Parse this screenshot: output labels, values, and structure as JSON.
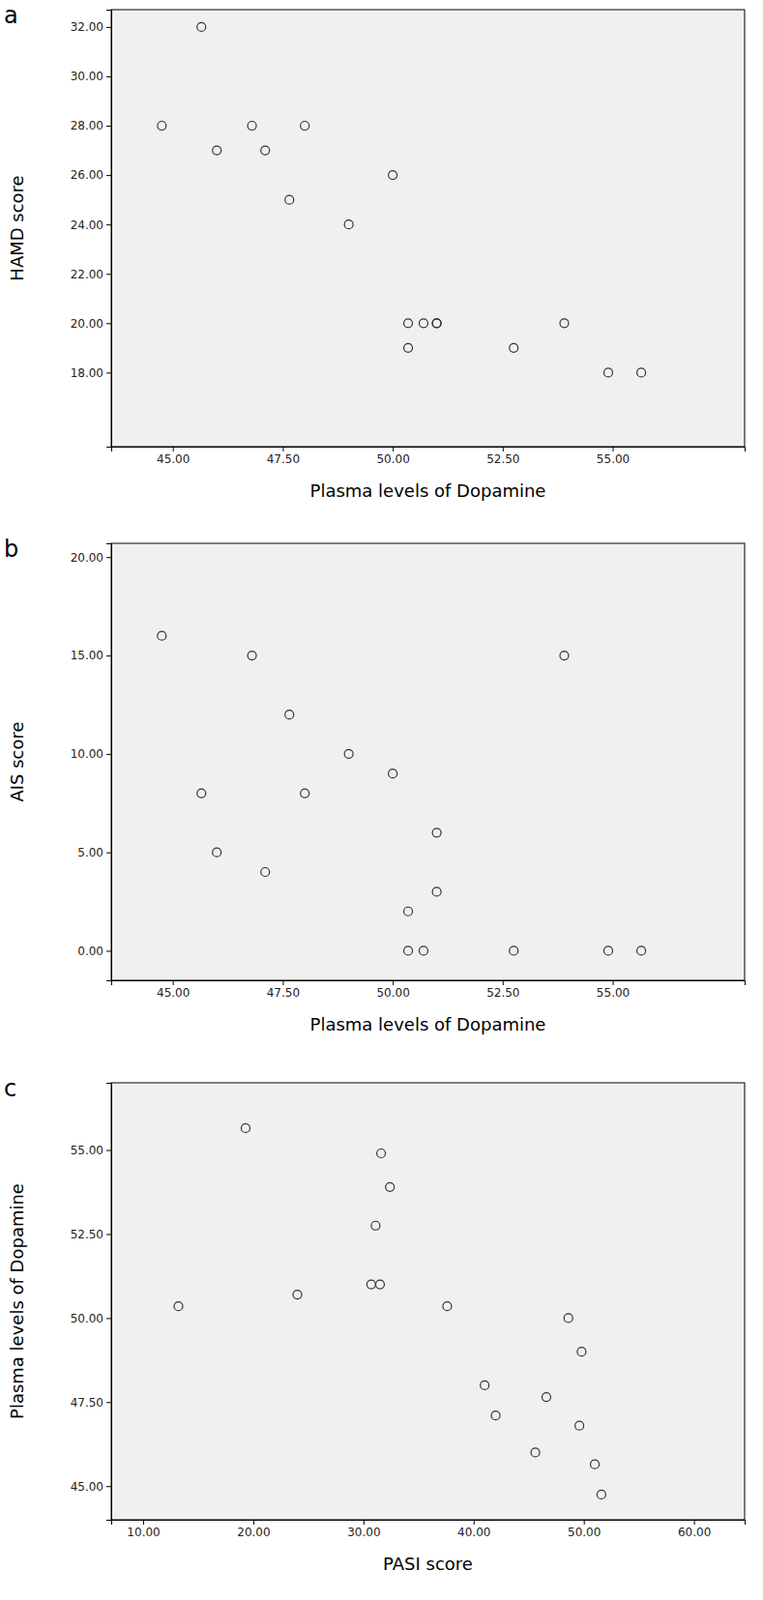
{
  "chart_data": [
    {
      "type": "scatter",
      "panel": "a",
      "x_label": "Plasma levels of Dopamine",
      "y_label": "HAMD score",
      "marker": "open-circle",
      "x": [
        45.65,
        44.75,
        46.0,
        46.8,
        47.1,
        48.0,
        47.65,
        49.0,
        50.0,
        50.35,
        50.35,
        50.7,
        51.0,
        51.0,
        52.75,
        53.9,
        54.9,
        55.65
      ],
      "y": [
        32,
        28,
        27,
        28,
        27,
        28,
        25,
        24,
        26,
        20,
        19,
        20,
        20,
        20,
        19,
        20,
        18,
        18
      ],
      "xlim": [
        43.6,
        58.0
      ],
      "ylim": [
        15.0,
        32.7
      ],
      "xticks": [
        {
          "value": 45,
          "label": "45.00"
        },
        {
          "value": 47.5,
          "label": "47.50"
        },
        {
          "value": 50,
          "label": "50.00"
        },
        {
          "value": 52.5,
          "label": "52.50"
        },
        {
          "value": 55,
          "label": "55.00"
        }
      ],
      "yticks": [
        {
          "value": 18,
          "label": "18.00"
        },
        {
          "value": 20,
          "label": "20.00"
        },
        {
          "value": 22,
          "label": "22.00"
        },
        {
          "value": 24,
          "label": "24.00"
        },
        {
          "value": 26,
          "label": "26.00"
        },
        {
          "value": 28,
          "label": "28.00"
        },
        {
          "value": 30,
          "label": "30.00"
        },
        {
          "value": 32,
          "label": "32.00"
        }
      ]
    },
    {
      "type": "scatter",
      "panel": "b",
      "x_label": "Plasma levels of Dopamine",
      "y_label": "AIS score",
      "marker": "open-circle",
      "x": [
        44.75,
        46.8,
        47.65,
        49.0,
        45.65,
        48.0,
        50.0,
        46.0,
        47.1,
        51.0,
        51.0,
        50.35,
        50.35,
        50.7,
        52.75,
        53.9,
        54.9,
        55.65
      ],
      "y": [
        16,
        15,
        12,
        10,
        8,
        8,
        9,
        5,
        4,
        6,
        3,
        2,
        0,
        0,
        0,
        15,
        0,
        0
      ],
      "xlim": [
        43.6,
        58.0
      ],
      "ylim": [
        -1.5,
        20.7
      ],
      "xticks": [
        {
          "value": 45,
          "label": "45.00"
        },
        {
          "value": 47.5,
          "label": "47.50"
        },
        {
          "value": 50,
          "label": "50.00"
        },
        {
          "value": 52.5,
          "label": "52.50"
        },
        {
          "value": 55,
          "label": "55.00"
        }
      ],
      "yticks": [
        {
          "value": 0,
          "label": "0.00"
        },
        {
          "value": 5,
          "label": "5.00"
        },
        {
          "value": 10,
          "label": "10.00"
        },
        {
          "value": 15,
          "label": "15.00"
        },
        {
          "value": 20,
          "label": "20.00"
        }
      ]
    },
    {
      "type": "scatter",
      "panel": "c",
      "x_label": "PASI score",
      "y_label": "Plasma levels of Dopamine",
      "marker": "open-circle",
      "x": [
        19.3,
        31.6,
        32.4,
        31.1,
        13.2,
        24.0,
        30.7,
        31.5,
        37.6,
        48.6,
        49.8,
        41.0,
        46.6,
        42.0,
        49.6,
        45.6,
        51.0,
        51.6
      ],
      "y": [
        55.65,
        54.9,
        53.9,
        52.75,
        50.35,
        50.7,
        51.0,
        51.0,
        50.35,
        50.0,
        49.0,
        48.0,
        47.65,
        47.1,
        46.8,
        46.0,
        45.65,
        44.75
      ],
      "xlim": [
        7.1,
        64.6
      ],
      "ylim": [
        44.0,
        57.0
      ],
      "xticks": [
        {
          "value": 10,
          "label": "10.00"
        },
        {
          "value": 20,
          "label": "20.00"
        },
        {
          "value": 30,
          "label": "30.00"
        },
        {
          "value": 40,
          "label": "40.00"
        },
        {
          "value": 50,
          "label": "50.00"
        },
        {
          "value": 60,
          "label": "60.00"
        }
      ],
      "yticks": [
        {
          "value": 45,
          "label": "45.00"
        },
        {
          "value": 47.5,
          "label": "47.50"
        },
        {
          "value": 50,
          "label": "50.00"
        },
        {
          "value": 52.5,
          "label": "52.50"
        },
        {
          "value": 55,
          "label": "55.00"
        }
      ]
    }
  ]
}
